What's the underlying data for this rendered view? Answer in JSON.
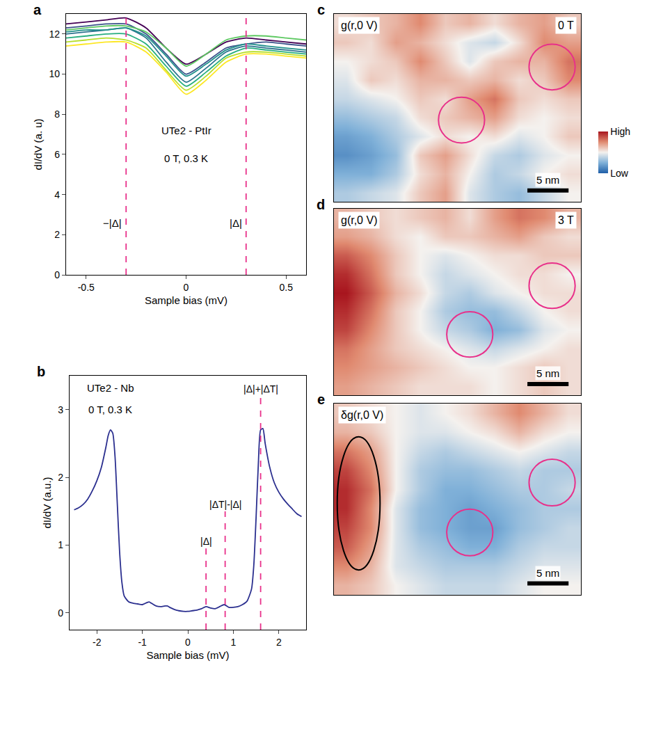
{
  "chart_data": [
    {
      "panel": "a",
      "type": "line",
      "x_label": "Sample bias (mV)",
      "y_label": "dI/dV (a. u)",
      "xlim": [
        -0.6,
        0.6
      ],
      "xticks": [
        -0.5,
        0,
        0.5
      ],
      "ylim": [
        0,
        13
      ],
      "yticks": [
        0,
        2,
        4,
        6,
        8,
        10,
        12
      ],
      "x": [
        -0.6,
        -0.5,
        -0.4,
        -0.3,
        -0.2,
        -0.1,
        0,
        0.1,
        0.2,
        0.3,
        0.4,
        0.5,
        0.6
      ],
      "series": [
        {
          "color": "#440154",
          "values": [
            12.5,
            12.6,
            12.7,
            12.8,
            12.3,
            11.3,
            10.5,
            11.0,
            11.6,
            11.8,
            11.7,
            11.6,
            11.5
          ]
        },
        {
          "color": "#3b528b",
          "values": [
            12.3,
            12.4,
            12.5,
            12.5,
            12.0,
            11.0,
            10.0,
            10.6,
            11.3,
            11.5,
            11.6,
            11.5,
            11.4
          ]
        },
        {
          "color": "#2c728e",
          "values": [
            12.0,
            12.1,
            12.2,
            12.3,
            11.8,
            10.6,
            9.6,
            10.3,
            11.1,
            11.4,
            11.3,
            11.2,
            11.1
          ]
        },
        {
          "color": "#21918c",
          "values": [
            12.1,
            12.2,
            12.2,
            12.3,
            11.9,
            10.9,
            9.9,
            10.5,
            11.2,
            11.5,
            11.4,
            11.3,
            11.2
          ]
        },
        {
          "color": "#5ec962",
          "values": [
            12.2,
            12.3,
            12.4,
            12.4,
            12.1,
            11.3,
            10.4,
            11.0,
            11.7,
            11.9,
            11.9,
            11.8,
            11.7
          ]
        },
        {
          "color": "#28ae80",
          "values": [
            11.8,
            11.9,
            12.0,
            12.0,
            11.5,
            10.4,
            9.4,
            10.1,
            10.9,
            11.3,
            11.2,
            11.1,
            11.0
          ]
        },
        {
          "color": "#b5de2b",
          "values": [
            11.6,
            11.7,
            11.8,
            11.7,
            11.3,
            10.2,
            9.2,
            9.9,
            10.8,
            11.1,
            11.1,
            11.0,
            10.9
          ]
        },
        {
          "color": "#fde725",
          "values": [
            11.4,
            11.5,
            11.6,
            11.6,
            11.1,
            10.1,
            9.0,
            9.7,
            10.6,
            11.0,
            11.0,
            10.9,
            10.8
          ]
        }
      ],
      "vlines": [
        {
          "x": -0.3,
          "label": "−|Δ|",
          "color": "#e8308a"
        },
        {
          "x": 0.3,
          "label": "|Δ|",
          "color": "#e8308a"
        }
      ],
      "annotations": [
        {
          "text": "UTe2 - PtIr",
          "x": 0,
          "y": 7.2
        },
        {
          "text": "0 T, 0.3 K",
          "x": 0,
          "y": 5.8
        }
      ]
    },
    {
      "panel": "b",
      "type": "line",
      "x_label": "Sample bias (mV)",
      "y_label": "dI/dV (a.u.)",
      "xlim": [
        -2.6,
        2.6
      ],
      "xticks": [
        -2,
        -1,
        0,
        1,
        2
      ],
      "ylim": [
        -0.25,
        3.5
      ],
      "yticks": [
        0,
        1,
        2,
        3
      ],
      "x": [
        -2.5,
        -2.4,
        -2.3,
        -2.2,
        -2.1,
        -2.0,
        -1.9,
        -1.8,
        -1.75,
        -1.7,
        -1.65,
        -1.6,
        -1.55,
        -1.5,
        -1.45,
        -1.4,
        -1.3,
        -1.2,
        -1.1,
        -1.0,
        -0.9,
        -0.85,
        -0.8,
        -0.7,
        -0.6,
        -0.5,
        -0.45,
        -0.4,
        -0.3,
        -0.2,
        -0.1,
        0,
        0.1,
        0.2,
        0.3,
        0.4,
        0.5,
        0.6,
        0.7,
        0.8,
        0.9,
        1.0,
        1.1,
        1.2,
        1.3,
        1.4,
        1.45,
        1.5,
        1.55,
        1.6,
        1.65,
        1.7,
        1.8,
        1.9,
        2.0,
        2.1,
        2.2,
        2.3,
        2.4,
        2.5
      ],
      "series": [
        {
          "color": "#2b2f8f",
          "values": [
            1.52,
            1.55,
            1.6,
            1.68,
            1.8,
            1.95,
            2.15,
            2.45,
            2.62,
            2.7,
            2.65,
            2.3,
            1.6,
            0.9,
            0.45,
            0.25,
            0.16,
            0.14,
            0.13,
            0.12,
            0.15,
            0.16,
            0.14,
            0.1,
            0.09,
            0.1,
            0.1,
            0.08,
            0.05,
            0.03,
            0.02,
            0.02,
            0.03,
            0.04,
            0.06,
            0.09,
            0.07,
            0.06,
            0.09,
            0.12,
            0.08,
            0.08,
            0.09,
            0.12,
            0.17,
            0.35,
            0.7,
            1.4,
            2.2,
            2.7,
            2.72,
            2.5,
            2.15,
            1.92,
            1.78,
            1.68,
            1.6,
            1.53,
            1.46,
            1.42
          ]
        }
      ],
      "vlines": [
        {
          "x": 0.4,
          "y_end": 0.95,
          "label": "|Δ|",
          "color": "#e8308a"
        },
        {
          "x": 0.82,
          "y_end": 1.5,
          "label": "|ΔT|-|Δ|",
          "color": "#e8308a"
        },
        {
          "x": 1.6,
          "y_end": 3.2,
          "label": "|Δ|+|ΔT|",
          "color": "#e8308a"
        }
      ],
      "annotations": [
        {
          "text": "UTe2 - Nb",
          "x": -1.7,
          "y": 3.32
        },
        {
          "text": "0 T, 0.3 K",
          "x": -1.7,
          "y": 3.0
        }
      ]
    },
    {
      "panel": "c",
      "type": "heatmap",
      "label": "g(r,0 V)",
      "field": "0 T",
      "tick_labels": false,
      "xlim": [
        0,
        30
      ],
      "ylim": [
        0,
        23
      ],
      "zlim": [
        -1,
        1
      ],
      "zticks": [
        {
          "value": -1,
          "label": "Low"
        },
        {
          "value": 1,
          "label": "High"
        }
      ],
      "scale_bar": {
        "length": 5,
        "label": "5 nm"
      },
      "x": [
        1.5,
        4.5,
        7.5,
        10.5,
        13.5,
        16.5,
        19.5,
        22.5,
        25.5,
        28.5
      ],
      "y": [
        21.85,
        19.55,
        17.25,
        14.95,
        12.65,
        10.35,
        8.05,
        5.75,
        3.45,
        1.15
      ],
      "z": [
        [
          0.1,
          0.2,
          0.3,
          0.5,
          0.2,
          0.3,
          0.1,
          0.3,
          0.4,
          0.2
        ],
        [
          0.2,
          0.1,
          0.4,
          0.3,
          0.1,
          -0.1,
          -0.2,
          0.1,
          0.5,
          0.4
        ],
        [
          0.0,
          0.1,
          0.2,
          0.5,
          0.2,
          -0.1,
          0.2,
          0.3,
          0.3,
          0.6
        ],
        [
          -0.1,
          0.2,
          0.1,
          0.3,
          0.3,
          0.2,
          0.3,
          0.1,
          0.2,
          0.5
        ],
        [
          -0.2,
          -0.1,
          0.0,
          0.2,
          0.1,
          0.4,
          0.6,
          0.2,
          0.1,
          0.2
        ],
        [
          -0.4,
          -0.3,
          -0.2,
          0.1,
          0.2,
          0.3,
          0.4,
          0.1,
          0.0,
          0.1
        ],
        [
          -0.6,
          -0.5,
          -0.3,
          -0.1,
          0.1,
          0.0,
          0.1,
          -0.1,
          0.0,
          0.2
        ],
        [
          -0.7,
          -0.6,
          -0.4,
          0.2,
          0.4,
          0.1,
          -0.2,
          -0.3,
          -0.1,
          0.0
        ],
        [
          -0.5,
          -0.5,
          -0.3,
          0.1,
          0.3,
          0.0,
          -0.3,
          -0.2,
          0.0,
          0.1
        ],
        [
          -0.3,
          -0.2,
          -0.1,
          0.2,
          0.4,
          -0.1,
          -0.3,
          -0.4,
          -0.2,
          0.0
        ]
      ],
      "circles": [
        {
          "x": 15.5,
          "y": 10.0,
          "r": 2.8,
          "color": "#e8308a"
        },
        {
          "x": 26.5,
          "y": 16.5,
          "r": 2.8,
          "color": "#e8308a"
        }
      ]
    },
    {
      "panel": "d",
      "type": "heatmap",
      "label": "g(r,0 V)",
      "field": "3 T",
      "tick_labels": false,
      "xlim": [
        0,
        30
      ],
      "ylim": [
        0,
        23
      ],
      "zlim": [
        -1,
        1
      ],
      "scale_bar": {
        "length": 5,
        "label": "5 nm"
      },
      "x": [
        1.5,
        4.5,
        7.5,
        10.5,
        13.5,
        16.5,
        19.5,
        22.5,
        25.5,
        28.5
      ],
      "y": [
        21.85,
        19.55,
        17.25,
        14.95,
        12.65,
        10.35,
        8.05,
        5.75,
        3.45,
        1.15
      ],
      "z": [
        [
          0.3,
          0.2,
          0.1,
          0.2,
          0.3,
          0.1,
          0.4,
          0.6,
          0.5,
          0.3
        ],
        [
          0.4,
          0.3,
          0.1,
          0.0,
          0.2,
          0.2,
          0.3,
          0.4,
          0.2,
          0.1
        ],
        [
          0.7,
          0.5,
          0.2,
          0.0,
          -0.1,
          0.0,
          0.1,
          0.1,
          0.2,
          0.2
        ],
        [
          0.9,
          0.6,
          0.2,
          0.0,
          -0.2,
          -0.1,
          0.0,
          0.1,
          0.1,
          0.0
        ],
        [
          1.0,
          0.7,
          0.3,
          0.1,
          -0.2,
          -0.3,
          -0.1,
          0.0,
          0.1,
          0.1
        ],
        [
          0.9,
          0.6,
          0.2,
          0.0,
          -0.3,
          -0.4,
          -0.4,
          -0.2,
          0.0,
          0.1
        ],
        [
          0.8,
          0.5,
          0.2,
          0.0,
          -0.2,
          -0.3,
          -0.5,
          -0.4,
          -0.1,
          0.0
        ],
        [
          0.6,
          0.4,
          0.2,
          0.1,
          0.0,
          -0.1,
          -0.2,
          -0.1,
          0.0,
          0.1
        ],
        [
          0.5,
          0.4,
          0.3,
          0.2,
          0.1,
          0.0,
          0.0,
          0.1,
          0.2,
          0.1
        ],
        [
          0.4,
          0.3,
          0.2,
          0.1,
          0.1,
          0.1,
          0.0,
          0.1,
          0.2,
          0.1
        ]
      ],
      "circles": [
        {
          "x": 16.5,
          "y": 7.5,
          "r": 2.8,
          "color": "#e8308a"
        },
        {
          "x": 26.5,
          "y": 13.5,
          "r": 2.8,
          "color": "#e8308a"
        }
      ]
    },
    {
      "panel": "e",
      "type": "heatmap",
      "label": "δg(r,0 V)",
      "tick_labels": false,
      "xlim": [
        0,
        30
      ],
      "ylim": [
        0,
        23
      ],
      "zlim": [
        -1,
        1
      ],
      "scale_bar": {
        "length": 5,
        "label": "5 nm"
      },
      "x": [
        1.5,
        4.5,
        7.5,
        10.5,
        13.5,
        16.5,
        19.5,
        22.5,
        25.5,
        28.5
      ],
      "y": [
        21.85,
        19.55,
        17.25,
        14.95,
        12.65,
        10.35,
        8.05,
        5.75,
        3.45,
        1.15
      ],
      "z": [
        [
          0.2,
          0.1,
          0.0,
          -0.1,
          0.0,
          0.1,
          0.3,
          0.5,
          0.3,
          0.1
        ],
        [
          0.3,
          0.2,
          0.0,
          -0.1,
          -0.1,
          0.0,
          0.1,
          0.3,
          0.1,
          0.0
        ],
        [
          0.6,
          0.4,
          0.0,
          -0.2,
          -0.3,
          -0.2,
          -0.1,
          0.0,
          -0.1,
          -0.2
        ],
        [
          0.8,
          0.5,
          0.0,
          -0.3,
          -0.4,
          -0.4,
          -0.3,
          -0.2,
          -0.3,
          -0.3
        ],
        [
          0.9,
          0.6,
          0.0,
          -0.3,
          -0.5,
          -0.5,
          -0.4,
          -0.3,
          -0.3,
          -0.2
        ],
        [
          0.9,
          0.5,
          -0.1,
          -0.4,
          -0.5,
          -0.6,
          -0.5,
          -0.4,
          -0.3,
          -0.3
        ],
        [
          0.8,
          0.5,
          -0.1,
          -0.4,
          -0.5,
          -0.6,
          -0.6,
          -0.4,
          -0.3,
          -0.2
        ],
        [
          0.7,
          0.4,
          -0.1,
          -0.3,
          -0.4,
          -0.5,
          -0.5,
          -0.3,
          -0.2,
          -0.2
        ],
        [
          0.5,
          0.3,
          -0.1,
          -0.2,
          -0.3,
          -0.3,
          -0.3,
          -0.2,
          -0.1,
          -0.1
        ],
        [
          0.3,
          0.2,
          0.0,
          -0.1,
          -0.2,
          -0.2,
          -0.2,
          -0.1,
          0.0,
          0.0
        ]
      ],
      "circles": [
        {
          "x": 16.5,
          "y": 7.5,
          "r": 2.8,
          "color": "#e8308a"
        },
        {
          "x": 26.5,
          "y": 13.5,
          "r": 2.8,
          "color": "#e8308a"
        }
      ],
      "ellipses": [
        {
          "x": 3.0,
          "y": 11.0,
          "rx": 2.6,
          "ry": 8.0,
          "color": "#000000"
        }
      ]
    }
  ]
}
